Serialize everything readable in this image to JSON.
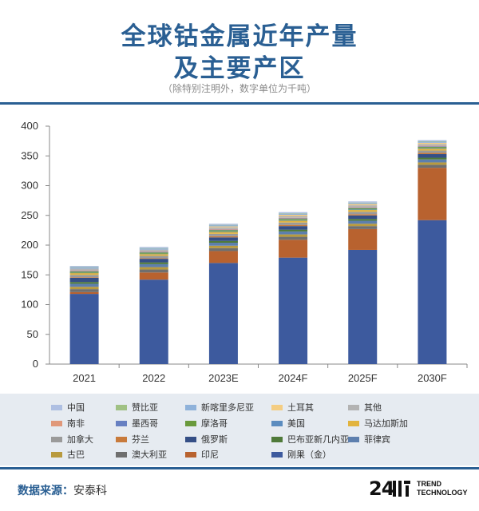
{
  "header": {
    "title_line1": "全球钴金属近年产量",
    "title_line2": "及主要产区",
    "subtitle": "（除特别注明外，数字单位为千吨）"
  },
  "footer": {
    "source_label": "数据来源：",
    "source_value": "安泰科",
    "logo_number": "24",
    "logo_line1": "TREND",
    "logo_line2": "TECHNOLOGY"
  },
  "chart_data": {
    "type": "bar",
    "stacked": true,
    "categories": [
      "2021",
      "2022",
      "2023E",
      "2024F",
      "2025F",
      "2030F"
    ],
    "ylim": [
      0,
      400
    ],
    "yticks": [
      0,
      50,
      100,
      150,
      200,
      250,
      300,
      350,
      400
    ],
    "grid": false,
    "legend_position": "bottom",
    "series": [
      {
        "name": "刚果（金）",
        "color": "#3d5a9e",
        "values": [
          118,
          142,
          170,
          179,
          192,
          242
        ]
      },
      {
        "name": "印尼",
        "color": "#b8622f",
        "values": [
          3,
          12,
          20,
          30,
          35,
          88
        ]
      },
      {
        "name": "澳大利亚",
        "color": "#6f6f6f",
        "values": [
          5,
          5,
          5,
          5,
          5,
          5
        ]
      },
      {
        "name": "古巴",
        "color": "#b89a3e",
        "values": [
          4,
          4,
          4,
          4,
          4,
          4
        ]
      },
      {
        "name": "菲律宾",
        "color": "#5d7fae",
        "values": [
          5,
          5,
          5,
          5,
          5,
          5
        ]
      },
      {
        "name": "巴布亚新几内亚",
        "color": "#4f7a3a",
        "values": [
          3,
          3,
          3,
          3,
          3,
          3
        ]
      },
      {
        "name": "俄罗斯",
        "color": "#354f86",
        "values": [
          7,
          6,
          6,
          6,
          6,
          6
        ]
      },
      {
        "name": "芬兰",
        "color": "#c87a3b",
        "values": [
          1,
          1,
          2,
          2,
          2,
          2
        ]
      },
      {
        "name": "加拿大",
        "color": "#9a9a9a",
        "values": [
          4,
          4,
          4,
          4,
          4,
          4
        ]
      },
      {
        "name": "马达加斯加",
        "color": "#e2b43e",
        "values": [
          3,
          3,
          3,
          3,
          3,
          3
        ]
      },
      {
        "name": "美国",
        "color": "#5b8cbf",
        "values": [
          0.5,
          0.5,
          1,
          1,
          1,
          1
        ]
      },
      {
        "name": "摩洛哥",
        "color": "#6a9a3c",
        "values": [
          2,
          2,
          2,
          2,
          2,
          2
        ]
      },
      {
        "name": "墨西哥",
        "color": "#6780c2",
        "values": [
          1,
          1,
          1,
          1,
          1,
          1
        ]
      },
      {
        "name": "南非",
        "color": "#e0987a",
        "values": [
          1,
          1,
          1,
          1,
          1,
          1
        ]
      },
      {
        "name": "其他",
        "color": "#b3b3b3",
        "values": [
          3,
          3,
          3,
          3,
          3,
          3
        ]
      },
      {
        "name": "土耳其",
        "color": "#f4cd82",
        "values": [
          0,
          0,
          1.5,
          2,
          2,
          2
        ]
      },
      {
        "name": "新喀里多尼亚",
        "color": "#8fb2da",
        "values": [
          2,
          2,
          2,
          2,
          2,
          2
        ]
      },
      {
        "name": "赞比亚",
        "color": "#a0c184",
        "values": [
          0.5,
          0.5,
          0.5,
          0.5,
          0.5,
          0.5
        ]
      },
      {
        "name": "中国",
        "color": "#aebfe2",
        "values": [
          2,
          2,
          2,
          2,
          2,
          2
        ]
      }
    ],
    "legend": [
      [
        "中国",
        "赞比亚",
        "新喀里多尼亚",
        "土耳其",
        "其他"
      ],
      [
        "南非",
        "墨西哥",
        "摩洛哥",
        "美国",
        "马达加斯加"
      ],
      [
        "加拿大",
        "芬兰",
        "俄罗斯",
        "巴布亚新几内亚",
        "菲律宾"
      ],
      [
        "古巴",
        "澳大利亚",
        "印尼",
        "刚果（金）"
      ]
    ]
  }
}
